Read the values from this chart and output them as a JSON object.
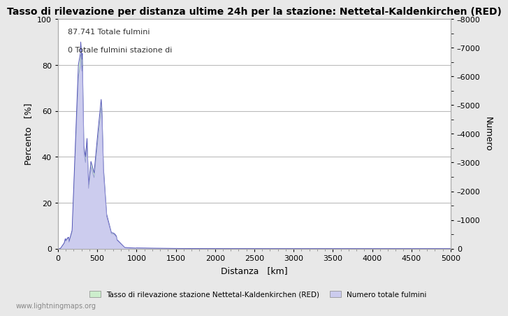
{
  "title": "Tasso di rilevazione per distanza ultime 24h per la stazione: Nettetal-Kaldenkirchen (RED)",
  "xlabel": "Distanza   [km]",
  "ylabel_left": "Percento   [%]",
  "ylabel_right": "Numero",
  "annotation_line1": "87.741 Totale fulmini",
  "annotation_line2": "0 Totale fulmini stazione di",
  "legend_label1": "Tasso di rilevazione stazione Nettetal-Kaldenkirchen (RED)",
  "legend_label2": "Numero totale fulmini",
  "watermark": "www.lightningmaps.org",
  "xlim": [
    0,
    5000
  ],
  "ylim_left": [
    0,
    100
  ],
  "ylim_right": [
    0,
    8000
  ],
  "xticks": [
    0,
    500,
    1000,
    1500,
    2000,
    2500,
    3000,
    3500,
    4000,
    4500,
    5000
  ],
  "yticks_left": [
    0,
    20,
    40,
    60,
    80,
    100
  ],
  "yticks_right": [
    0,
    1000,
    2000,
    3000,
    4000,
    5000,
    6000,
    7000,
    8000
  ],
  "fig_bg_color": "#e8e8e8",
  "plot_bg_color": "#ffffff",
  "line_color": "#5555bb",
  "fill_green_color": "#cceecc",
  "fill_blue_color": "#ccccee",
  "grid_color": "#bbbbbb",
  "title_fontsize": 10,
  "label_fontsize": 9,
  "tick_fontsize": 8,
  "annot_fontsize": 8
}
